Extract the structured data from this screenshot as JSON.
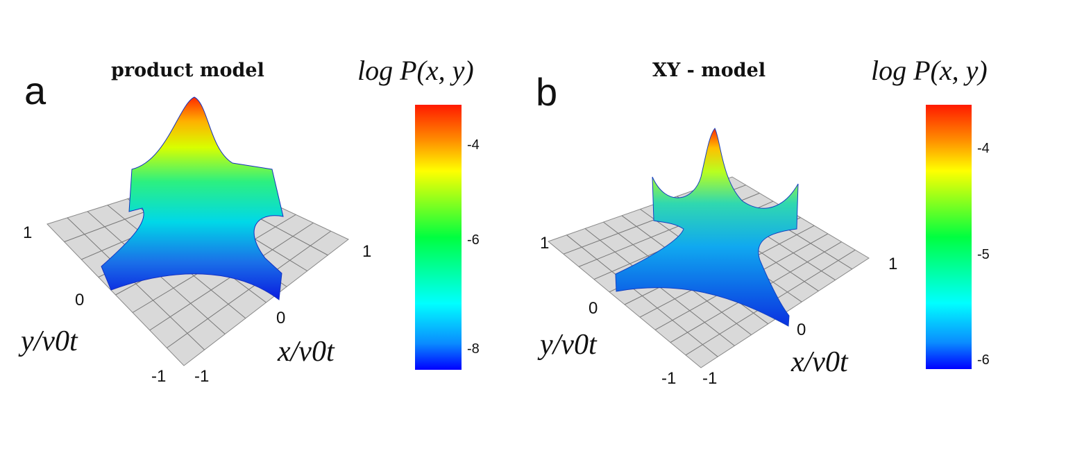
{
  "chart_data": [
    {
      "type": "surface3d",
      "panel_label": "a",
      "title": "product model",
      "xlabel": "x/v0t",
      "ylabel": "y/v0t",
      "x_ticks": [
        "-1",
        "0",
        "1"
      ],
      "y_ticks": [
        "-1",
        "0",
        "1"
      ],
      "xlim": [
        -1,
        1
      ],
      "ylim": [
        -1,
        1
      ],
      "colorbar": {
        "label": "log P(x, y)",
        "ticks": [
          "-4",
          "-6",
          "-8"
        ],
        "tick_values": [
          -4,
          -6,
          -8
        ],
        "range": [
          -8.2,
          -3.4
        ],
        "colormap": "jet"
      }
    },
    {
      "type": "surface3d",
      "panel_label": "b",
      "title": "XY - model",
      "xlabel": "x/v0t",
      "ylabel": "y/v0t",
      "x_ticks": [
        "-1",
        "0",
        "1"
      ],
      "y_ticks": [
        "-1",
        "0",
        "1"
      ],
      "xlim": [
        -1,
        1
      ],
      "ylim": [
        -1,
        1
      ],
      "colorbar": {
        "label": "log P(x, y)",
        "ticks": [
          "-4",
          "-5",
          "-6"
        ],
        "tick_values": [
          -4,
          -5,
          -6
        ],
        "range": [
          -6.1,
          -3.6
        ],
        "colormap": "jet"
      }
    }
  ],
  "colors": {
    "floor": "#d9d9d9",
    "grid": "#777777",
    "jet_low": "#0000ff",
    "jet_high": "#ff1a00"
  }
}
